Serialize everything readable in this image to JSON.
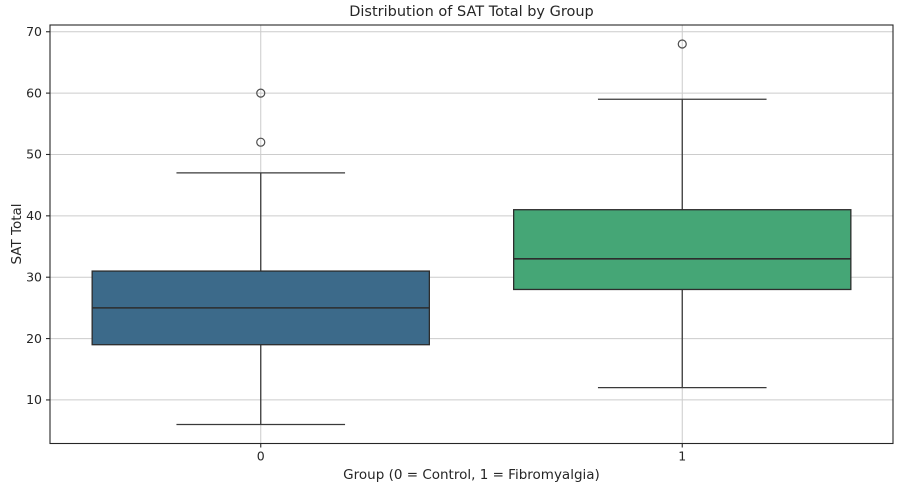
{
  "chart_data": {
    "type": "box",
    "title": "Distribution of SAT Total by Group",
    "xlabel": "Group (0 = Control, 1 = Fibromyalgia)",
    "ylabel": "SAT Total",
    "categories": [
      "0",
      "1"
    ],
    "series": [
      {
        "name": "Control",
        "category": "0",
        "x": 0,
        "whisker_low": 6,
        "q1": 19,
        "median": 25,
        "q3": 31,
        "whisker_high": 47,
        "outliers": [
          52,
          60
        ],
        "color": "#3C6A8A"
      },
      {
        "name": "Fibromyalgia",
        "category": "1",
        "x": 1,
        "whisker_low": 12,
        "q1": 28,
        "median": 33,
        "q3": 41,
        "whisker_high": 59,
        "outliers": [
          68
        ],
        "color": "#45A676"
      }
    ],
    "yticks": [
      10,
      20,
      30,
      40,
      50,
      60,
      70
    ],
    "ylim": [
      2.9,
      71.1
    ],
    "xlim": [
      -0.5,
      1.5
    ],
    "grid": true,
    "legend": false,
    "box_width": 0.8,
    "cap_width": 0.4
  },
  "styles": {
    "background": "#ffffff",
    "grid_color": "#cccccc",
    "spine_color": "#262626",
    "whisker_color": "#3a3a3a",
    "box_edge_color": "#2d2d2d",
    "median_color": "#2d2d2d",
    "flier_edge_color": "#4d4d4d",
    "text_color": "#262626"
  }
}
